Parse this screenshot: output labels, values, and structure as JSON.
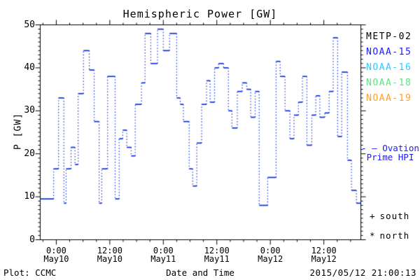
{
  "page": {
    "background": "#ffffff"
  },
  "header": {
    "title": "Hemispheric Power [GW]"
  },
  "legend": {
    "satellites": [
      {
        "label": "METP-02",
        "color": "#000000"
      },
      {
        "label": "NOAA-15",
        "color": "#1a1aff"
      },
      {
        "label": "NOAA-16",
        "color": "#30c9ff"
      },
      {
        "label": "NOAA-18",
        "color": "#5fe383"
      },
      {
        "label": "NOAA-19",
        "color": "#ffa028"
      }
    ],
    "ovation": {
      "line1": "- — Ovation",
      "line2": "Prime HPI",
      "color": "#1a1aff"
    },
    "markers": [
      {
        "glyph": "+",
        "label": "south"
      },
      {
        "glyph": "*",
        "label": "north"
      }
    ]
  },
  "footer": {
    "left": "Plot: CCMC",
    "right": "2015/05/12 21:00:13"
  },
  "chart_data": {
    "type": "line",
    "subtype": "step-segments-with-dotted-connectors",
    "title": "Hemispheric Power [GW]",
    "xlabel": "Date and Time",
    "ylabel": "P [GW]",
    "ylim": [
      0,
      50
    ],
    "y_major_ticks": [
      0,
      10,
      20,
      30,
      40,
      50
    ],
    "y_minor_step": 1,
    "x_range_hours_from_may10_0000": [
      -3.6,
      68.3
    ],
    "x_minor_step_hours": 3,
    "x_major_step_hours": 12,
    "grid": false,
    "legend_position": "right-margin",
    "x_ticks": [
      {
        "hours": 0,
        "time": "0:00",
        "date": "May10"
      },
      {
        "hours": 12,
        "time": "12:00",
        "date": "May10"
      },
      {
        "hours": 24,
        "time": "0:00",
        "date": "May11"
      },
      {
        "hours": 36,
        "time": "12:00",
        "date": "May11"
      },
      {
        "hours": 48,
        "time": "0:00",
        "date": "May12"
      },
      {
        "hours": 60,
        "time": "12:00",
        "date": "May12"
      }
    ],
    "series": [
      {
        "name": "NOAA-15",
        "color": "#0d2ee0",
        "segments_hours_value": [
          [
            -3.6,
            -0.6,
            9.5
          ],
          [
            -0.6,
            0.5,
            16.5
          ],
          [
            0.5,
            1.7,
            33
          ],
          [
            1.7,
            2.2,
            8.5
          ],
          [
            2.2,
            3.3,
            16.5
          ],
          [
            3.3,
            4.2,
            21.5
          ],
          [
            4.2,
            4.9,
            17.5
          ],
          [
            4.9,
            6.1,
            34
          ],
          [
            6.1,
            7.4,
            44
          ],
          [
            7.4,
            8.5,
            39.5
          ],
          [
            8.5,
            9.6,
            27.5
          ],
          [
            9.6,
            10.2,
            8.5
          ],
          [
            10.2,
            11.5,
            16.5
          ],
          [
            11.5,
            13.2,
            38
          ],
          [
            13.2,
            14.1,
            9.5
          ],
          [
            14.1,
            14.9,
            23.5
          ],
          [
            14.9,
            15.8,
            25.5
          ],
          [
            15.8,
            16.8,
            21.5
          ],
          [
            16.8,
            17.7,
            19.5
          ],
          [
            17.7,
            19.1,
            31.5
          ],
          [
            19.1,
            19.9,
            36.5
          ],
          [
            19.9,
            21.2,
            48
          ],
          [
            21.2,
            22.7,
            41
          ],
          [
            22.7,
            24,
            49
          ],
          [
            24,
            25.4,
            44
          ],
          [
            25.4,
            27,
            48
          ],
          [
            27,
            27.8,
            33
          ],
          [
            27.8,
            28.5,
            31.5
          ],
          [
            28.5,
            29.8,
            27.5
          ],
          [
            29.8,
            30.6,
            16.5
          ],
          [
            30.6,
            31.5,
            12.5
          ],
          [
            31.5,
            32.6,
            22.5
          ],
          [
            32.6,
            33.7,
            31.5
          ],
          [
            33.7,
            34.5,
            37
          ],
          [
            34.5,
            35.5,
            32
          ],
          [
            35.5,
            36.4,
            40
          ],
          [
            36.4,
            37.5,
            41
          ],
          [
            37.5,
            38.6,
            40
          ],
          [
            38.6,
            39.4,
            30
          ],
          [
            39.4,
            40.6,
            26
          ],
          [
            40.6,
            41.7,
            34.5
          ],
          [
            41.7,
            42.7,
            36.5
          ],
          [
            42.7,
            43.6,
            35
          ],
          [
            43.6,
            44.6,
            28.5
          ],
          [
            44.6,
            45.5,
            34.5
          ],
          [
            45.5,
            47.4,
            8
          ],
          [
            47.4,
            49.3,
            14.5
          ],
          [
            49.3,
            50.2,
            41.5
          ],
          [
            50.2,
            51.3,
            38
          ],
          [
            51.3,
            52.4,
            30
          ],
          [
            52.4,
            53.3,
            23.5
          ],
          [
            53.3,
            54.3,
            29
          ],
          [
            54.3,
            55.2,
            32
          ],
          [
            55.2,
            56.2,
            38
          ],
          [
            56.2,
            57.3,
            22
          ],
          [
            57.3,
            58.2,
            29
          ],
          [
            58.2,
            59.1,
            33.5
          ],
          [
            59.1,
            60.2,
            28.5
          ],
          [
            60.2,
            61.2,
            29.5
          ],
          [
            61.2,
            62.1,
            34.5
          ],
          [
            62.1,
            63.1,
            47
          ],
          [
            63.1,
            64,
            24
          ],
          [
            64,
            65.3,
            39
          ],
          [
            65.3,
            66.2,
            18.5
          ],
          [
            66.2,
            67.3,
            11.5
          ],
          [
            67.3,
            68.3,
            8.5
          ]
        ]
      }
    ]
  }
}
